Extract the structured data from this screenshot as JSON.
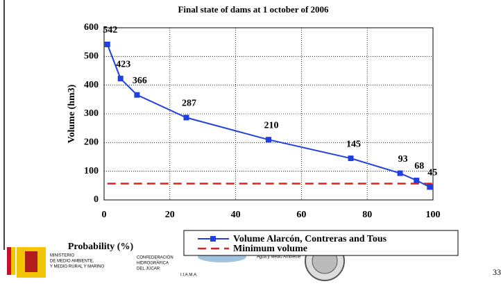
{
  "chart_data": {
    "type": "line",
    "title": "Final state of dams at 1 october of 2006",
    "x_label": "Probability (%)",
    "y_label": "Volume (hm3)",
    "xlim": [
      0,
      100
    ],
    "xticks": [
      0,
      20,
      40,
      60,
      80,
      100
    ],
    "ylim": [
      0,
      600
    ],
    "yticks": [
      0,
      100,
      200,
      300,
      400,
      500,
      600
    ],
    "grid": true,
    "x": [
      1,
      5,
      10,
      25,
      50,
      75,
      90,
      95,
      99
    ],
    "series": [
      {
        "name": "Volume Alarcón, Contreras and Tous",
        "color": "#1f3fe0",
        "values": [
          542,
          423,
          366,
          287,
          210,
          145,
          93,
          68,
          45
        ]
      }
    ],
    "threshold": {
      "name": "Minimum volume",
      "color": "#e0201a",
      "value": 57,
      "x": [
        1,
        100
      ]
    }
  },
  "logos": {
    "ministry": [
      "MINISTERIO",
      "DE MEDIO AMBIENTE,",
      "Y MEDIO RURAL Y MARINO"
    ],
    "confederation": [
      "CONFEDERACIÓN",
      "HIDROGRÁFICA",
      "DEL JÚCAR"
    ],
    "institute": "I.I.A.M.A.",
    "institute_motto": "Agua y Medio Ambiente"
  },
  "page_number": "33"
}
